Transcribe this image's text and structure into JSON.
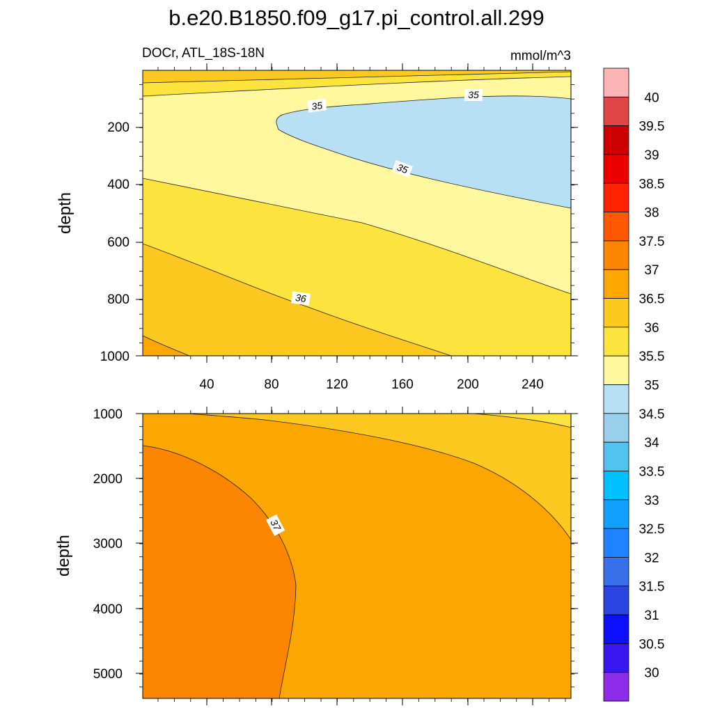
{
  "colors": {
    "c34": "#b8e0f4",
    "c35": "#fff89e",
    "c355": "#fde33e",
    "c36": "#fdc820",
    "c365": "#fca600",
    "c37": "#fc8600"
  },
  "chart_data": {
    "type": "contour",
    "title": "b.e20.B1850.f09_g17.pi_control.all.299",
    "left_string": "DOCr, ATL_18S-18N",
    "right_string": "mmol/m^3",
    "xlim": [
      0,
      264
    ],
    "x_ticks": [
      "40",
      "80",
      "120",
      "160",
      "200",
      "240"
    ],
    "panels": [
      {
        "name": "upper",
        "ylabel": "depth",
        "ylim": [
          1000,
          0
        ],
        "y_ticks": [
          "200",
          "400",
          "600",
          "800",
          "1000"
        ],
        "contour_labels": [
          "35",
          "35",
          "35",
          "36"
        ]
      },
      {
        "name": "lower",
        "ylabel": "depth",
        "ylim": [
          5400,
          1000
        ],
        "y_ticks": [
          "1000",
          "2000",
          "3000",
          "4000",
          "5000"
        ],
        "contour_labels": [
          "37"
        ]
      }
    ],
    "colorbar": {
      "levels": [
        "40",
        "39.5",
        "39",
        "38.5",
        "38",
        "37.5",
        "37",
        "36.5",
        "36",
        "35.5",
        "35",
        "34.5",
        "34",
        "33.5",
        "33",
        "32.5",
        "32",
        "31.5",
        "31",
        "30.5",
        "30"
      ],
      "colors": [
        "#fcb4b4",
        "#e04646",
        "#cc0000",
        "#ee0000",
        "#ff2200",
        "#ff5800",
        "#fc8600",
        "#fca600",
        "#fdc820",
        "#fde33e",
        "#fff89e",
        "#b8e0f4",
        "#98cfeb",
        "#52c2f1",
        "#00c0ff",
        "#12a0ff",
        "#1f82ff",
        "#3870ea",
        "#2a45e2",
        "#0f0fff",
        "#3a16f0",
        "#8c2ce8"
      ]
    }
  }
}
